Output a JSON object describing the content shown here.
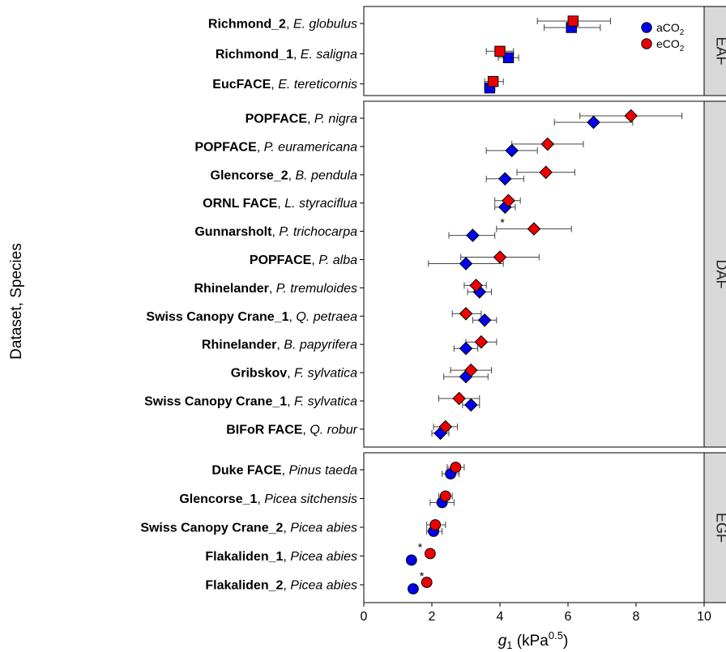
{
  "chart_data": {
    "type": "scatter",
    "ylabel": "Dataset, Species",
    "xlabel": {
      "symbol": "g",
      "sub": "1",
      "unit_open": " (kPa",
      "unit_exp": "0.5",
      "unit_close": ")"
    },
    "xlim": [
      0,
      10
    ],
    "xticks": [
      "0",
      "2",
      "4",
      "6",
      "8",
      "10"
    ],
    "legend": {
      "position": "top-right",
      "entries": [
        {
          "key": "a",
          "label": "aCO",
          "sub": "2",
          "color": "#0000ee"
        },
        {
          "key": "e",
          "label": "eCO",
          "sub": "2",
          "color": "#ee0000"
        }
      ]
    },
    "panels": [
      {
        "name": "EAF",
        "marker": "square",
        "rows": [
          {
            "dataset": "Richmond_2",
            "sep": ", ",
            "species": "E. globulus",
            "a": 6.1,
            "a_lo": 5.3,
            "a_hi": 6.95,
            "e": 6.15,
            "e_lo": 5.1,
            "e_hi": 7.25,
            "star": ""
          },
          {
            "dataset": "Richmond_1",
            "sep": ", ",
            "species": "E. saligna",
            "a": 4.25,
            "a_lo": 3.95,
            "a_hi": 4.55,
            "e": 4.0,
            "e_lo": 3.6,
            "e_hi": 4.4,
            "star": ""
          },
          {
            "dataset": "EucFACE",
            "sep": ", ",
            "species": "E. tereticornis",
            "a": 3.7,
            "a_lo": 3.55,
            "a_hi": 3.85,
            "e": 3.8,
            "e_lo": 3.55,
            "e_hi": 4.1,
            "star": ""
          }
        ]
      },
      {
        "name": "DAF",
        "marker": "diamond",
        "rows": [
          {
            "dataset": "POPFACE",
            "sep": ", ",
            "species": "P. nigra",
            "a": 6.75,
            "a_lo": 5.6,
            "a_hi": 7.9,
            "e": 7.85,
            "e_lo": 6.35,
            "e_hi": 9.35,
            "star": ""
          },
          {
            "dataset": "POPFACE",
            "sep": ", ",
            "species": "P. euramericana",
            "a": 4.35,
            "a_lo": 3.6,
            "a_hi": 5.1,
            "e": 5.4,
            "e_lo": 4.35,
            "e_hi": 6.45,
            "star": ""
          },
          {
            "dataset": "Glencorse_2",
            "sep": ", ",
            "species": "B. pendula",
            "a": 4.15,
            "a_lo": 3.6,
            "a_hi": 4.7,
            "e": 5.35,
            "e_lo": 4.5,
            "e_hi": 6.2,
            "star": ""
          },
          {
            "dataset": "ORNL FACE",
            "sep": ", ",
            "species": "L. styraciflua",
            "a": 4.15,
            "a_lo": 3.85,
            "a_hi": 4.45,
            "e": 4.25,
            "e_lo": 3.85,
            "e_hi": 4.6,
            "star": ""
          },
          {
            "dataset": "Gunnarsholt",
            "sep": ", ",
            "species": "P. trichocarpa",
            "a": 3.2,
            "a_lo": 2.5,
            "a_hi": 3.85,
            "e": 5.0,
            "e_lo": 3.9,
            "e_hi": 6.1,
            "star": "*"
          },
          {
            "dataset": "POPFACE",
            "sep": ", ",
            "species": "P. alba",
            "a": 3.0,
            "a_lo": 1.9,
            "a_hi": 4.1,
            "e": 4.0,
            "e_lo": 2.85,
            "e_hi": 5.15,
            "star": ""
          },
          {
            "dataset": "Rhinelander",
            "sep": ", ",
            "species": "P. tremuloides",
            "a": 3.4,
            "a_lo": 3.05,
            "a_hi": 3.75,
            "e": 3.3,
            "e_lo": 2.95,
            "e_hi": 3.6,
            "star": ""
          },
          {
            "dataset": "Swiss Canopy Crane_1",
            "sep": ", ",
            "species": "Q. petraea",
            "a": 3.55,
            "a_lo": 3.2,
            "a_hi": 3.9,
            "e": 3.0,
            "e_lo": 2.6,
            "e_hi": 3.45,
            "star": ""
          },
          {
            "dataset": "Rhinelander",
            "sep": ", ",
            "species": "B. papyrifera",
            "a": 3.0,
            "a_lo": 2.65,
            "a_hi": 3.35,
            "e": 3.45,
            "e_lo": 3.0,
            "e_hi": 3.9,
            "star": ""
          },
          {
            "dataset": "Gribskov",
            "sep": ", ",
            "species": "F. sylvatica",
            "a": 3.0,
            "a_lo": 2.35,
            "a_hi": 3.65,
            "e": 3.15,
            "e_lo": 2.55,
            "e_hi": 3.75,
            "star": ""
          },
          {
            "dataset": "Swiss Canopy Crane_1",
            "sep": ", ",
            "species": "F. sylvatica",
            "a": 3.15,
            "a_lo": 2.9,
            "a_hi": 3.4,
            "e": 2.8,
            "e_lo": 2.2,
            "e_hi": 3.4,
            "star": ""
          },
          {
            "dataset": "BIFoR FACE",
            "sep": ", ",
            "species": "Q. robur",
            "a": 2.25,
            "a_lo": 2.0,
            "a_hi": 2.5,
            "e": 2.4,
            "e_lo": 2.05,
            "e_hi": 2.75,
            "star": ""
          }
        ]
      },
      {
        "name": "EGF",
        "marker": "circle",
        "rows": [
          {
            "dataset": "Duke FACE",
            "sep": ", ",
            "species": "Pinus taeda",
            "a": 2.55,
            "a_lo": 2.3,
            "a_hi": 2.8,
            "e": 2.7,
            "e_lo": 2.45,
            "e_hi": 2.95,
            "star": ""
          },
          {
            "dataset": "Glencorse_1",
            "sep": ", ",
            "species": "Picea sitchensis",
            "a": 2.3,
            "a_lo": 1.95,
            "a_hi": 2.65,
            "e": 2.4,
            "e_lo": 2.2,
            "e_hi": 2.6,
            "star": ""
          },
          {
            "dataset": "Swiss Canopy Crane_2",
            "sep": ", ",
            "species": "Picea abies",
            "a": 2.05,
            "a_lo": 1.85,
            "a_hi": 2.3,
            "e": 2.1,
            "e_lo": 1.85,
            "e_hi": 2.4,
            "star": ""
          },
          {
            "dataset": "Flakaliden_1",
            "sep": ", ",
            "species": "Picea abies",
            "a": 1.4,
            "a_lo": 1.4,
            "a_hi": 1.4,
            "e": 1.95,
            "e_lo": 1.85,
            "e_hi": 2.05,
            "star": "*"
          },
          {
            "dataset": "Flakaliden_2",
            "sep": ", ",
            "species": "Picea abies",
            "a": 1.45,
            "a_lo": 1.45,
            "a_hi": 1.45,
            "e": 1.85,
            "e_lo": 1.85,
            "e_hi": 1.85,
            "star": "*"
          }
        ]
      }
    ]
  }
}
